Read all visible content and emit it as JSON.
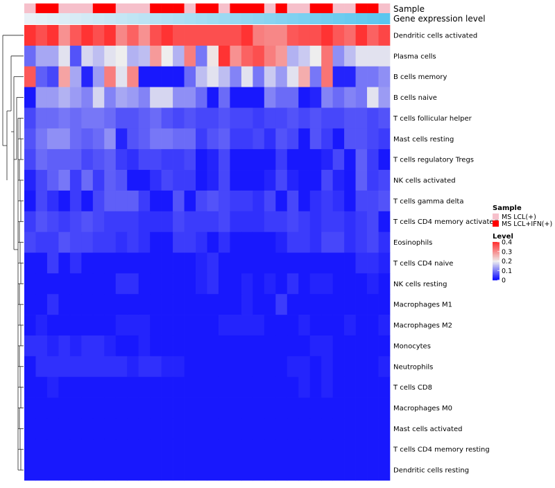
{
  "chart_data": {
    "type": "heatmap",
    "title": "",
    "annotation_tracks": [
      "Sample",
      "Gene expression level"
    ],
    "sample_annotation": [
      "LCL",
      "IFN",
      "IFN",
      "LCL",
      "LCL",
      "LCL",
      "IFN",
      "IFN",
      "LCL",
      "LCL",
      "LCL",
      "IFN",
      "IFN",
      "IFN",
      "LCL",
      "IFN",
      "IFN",
      "LCL",
      "IFN",
      "IFN",
      "IFN",
      "LCL",
      "IFN",
      "LCL",
      "LCL",
      "IFN",
      "IFN",
      "LCL",
      "LCL",
      "IFN",
      "IFN",
      "LCL"
    ],
    "expression_gradient": [
      "#eaf1f7",
      "#5bc6ee"
    ],
    "rows": [
      "Dendritic cells activated",
      "Plasma cells",
      "B cells memory",
      "B cells naive",
      "T cells follicular helper",
      "Mast cells resting",
      "T cells regulatory  Tregs",
      "NK cells activated",
      "T cells gamma delta",
      "T cells CD4 memory activated",
      "Eosinophils",
      "T cells CD4 naive",
      "NK cells resting",
      "Macrophages M1",
      "Macrophages M2",
      "Monocytes",
      "Neutrophils",
      "T cells CD8",
      "Macrophages M0",
      "Mast cells activated",
      "T cells CD4 memory resting",
      "Dendritic cells resting"
    ],
    "values": [
      [
        0.4,
        0.37,
        0.4,
        0.3,
        0.36,
        0.4,
        0.37,
        0.4,
        0.31,
        0.35,
        0.3,
        0.37,
        0.4,
        0.37,
        0.37,
        0.37,
        0.37,
        0.37,
        0.37,
        0.4,
        0.32,
        0.31,
        0.31,
        0.36,
        0.37,
        0.37,
        0.4,
        0.36,
        0.34,
        0.4,
        0.35,
        0.38
      ],
      [
        0.09,
        0.14,
        0.14,
        0.19,
        0.07,
        0.18,
        0.16,
        0.19,
        0.2,
        0.15,
        0.16,
        0.29,
        0.2,
        0.15,
        0.32,
        0.1,
        0.21,
        0.4,
        0.3,
        0.35,
        0.37,
        0.32,
        0.29,
        0.15,
        0.17,
        0.2,
        0.33,
        0.12,
        0.16,
        0.19,
        0.19,
        0.19
      ],
      [
        0.36,
        0.08,
        0.06,
        0.28,
        0.14,
        0.03,
        0.13,
        0.32,
        0.19,
        0.31,
        0.02,
        0.02,
        0.02,
        0.02,
        0.09,
        0.16,
        0.19,
        0.16,
        0.11,
        0.19,
        0.1,
        0.17,
        0.13,
        0.19,
        0.27,
        0.1,
        0.33,
        0.03,
        0.03,
        0.1,
        0.1,
        0.12
      ],
      [
        0.02,
        0.13,
        0.13,
        0.15,
        0.13,
        0.11,
        0.18,
        0.11,
        0.14,
        0.13,
        0.11,
        0.18,
        0.18,
        0.12,
        0.12,
        0.09,
        0.02,
        0.09,
        0.02,
        0.02,
        0.02,
        0.11,
        0.09,
        0.09,
        0.02,
        0.03,
        0.11,
        0.09,
        0.11,
        0.1,
        0.19,
        0.13
      ],
      [
        0.06,
        0.09,
        0.09,
        0.1,
        0.09,
        0.1,
        0.1,
        0.09,
        0.07,
        0.07,
        0.08,
        0.09,
        0.07,
        0.06,
        0.07,
        0.06,
        0.06,
        0.07,
        0.06,
        0.06,
        0.05,
        0.06,
        0.06,
        0.07,
        0.06,
        0.07,
        0.06,
        0.06,
        0.07,
        0.07,
        0.06,
        0.07
      ],
      [
        0.07,
        0.1,
        0.12,
        0.12,
        0.09,
        0.08,
        0.09,
        0.12,
        0.03,
        0.07,
        0.08,
        0.1,
        0.1,
        0.09,
        0.09,
        0.05,
        0.07,
        0.08,
        0.05,
        0.05,
        0.06,
        0.04,
        0.07,
        0.06,
        0.02,
        0.07,
        0.05,
        0.02,
        0.07,
        0.07,
        0.06,
        0.05
      ],
      [
        0.06,
        0.09,
        0.08,
        0.08,
        0.08,
        0.06,
        0.07,
        0.08,
        0.05,
        0.04,
        0.06,
        0.06,
        0.05,
        0.05,
        0.06,
        0.02,
        0.03,
        0.06,
        0.02,
        0.02,
        0.02,
        0.02,
        0.05,
        0.02,
        0.02,
        0.02,
        0.03,
        0.06,
        0.02,
        0.08,
        0.05,
        0.02
      ],
      [
        0.03,
        0.06,
        0.08,
        0.1,
        0.05,
        0.09,
        0.05,
        0.08,
        0.07,
        0.02,
        0.02,
        0.04,
        0.06,
        0.05,
        0.05,
        0.02,
        0.03,
        0.06,
        0.02,
        0.02,
        0.02,
        0.03,
        0.06,
        0.03,
        0.02,
        0.02,
        0.06,
        0.03,
        0.02,
        0.08,
        0.05,
        0.06
      ],
      [
        0.02,
        0.06,
        0.04,
        0.02,
        0.05,
        0.02,
        0.06,
        0.08,
        0.08,
        0.08,
        0.05,
        0.02,
        0.02,
        0.07,
        0.02,
        0.06,
        0.07,
        0.06,
        0.05,
        0.05,
        0.04,
        0.06,
        0.02,
        0.06,
        0.02,
        0.04,
        0.05,
        0.04,
        0.02,
        0.06,
        0.06,
        0.07
      ],
      [
        0.05,
        0.07,
        0.06,
        0.05,
        0.06,
        0.07,
        0.06,
        0.05,
        0.05,
        0.05,
        0.04,
        0.04,
        0.04,
        0.06,
        0.05,
        0.05,
        0.05,
        0.06,
        0.04,
        0.04,
        0.04,
        0.05,
        0.05,
        0.06,
        0.05,
        0.04,
        0.05,
        0.05,
        0.04,
        0.05,
        0.06,
        0.02
      ],
      [
        0.06,
        0.05,
        0.05,
        0.07,
        0.06,
        0.06,
        0.05,
        0.05,
        0.04,
        0.05,
        0.04,
        0.02,
        0.02,
        0.05,
        0.05,
        0.04,
        0.02,
        0.04,
        0.02,
        0.02,
        0.02,
        0.02,
        0.03,
        0.05,
        0.05,
        0.04,
        0.06,
        0.06,
        0.04,
        0.05,
        0.06,
        0.04
      ],
      [
        0.02,
        0.02,
        0.05,
        0.02,
        0.04,
        0.02,
        0.02,
        0.02,
        0.02,
        0.02,
        0.02,
        0.02,
        0.02,
        0.02,
        0.02,
        0.03,
        0.04,
        0.02,
        0.02,
        0.02,
        0.02,
        0.02,
        0.02,
        0.02,
        0.02,
        0.02,
        0.02,
        0.02,
        0.02,
        0.04,
        0.04,
        0.03
      ],
      [
        0.02,
        0.02,
        0.02,
        0.02,
        0.02,
        0.02,
        0.02,
        0.02,
        0.04,
        0.04,
        0.02,
        0.02,
        0.02,
        0.02,
        0.02,
        0.03,
        0.04,
        0.02,
        0.02,
        0.03,
        0.02,
        0.03,
        0.02,
        0.04,
        0.02,
        0.03,
        0.03,
        0.02,
        0.02,
        0.02,
        0.03,
        0.02
      ],
      [
        0.02,
        0.02,
        0.04,
        0.02,
        0.02,
        0.02,
        0.02,
        0.02,
        0.02,
        0.02,
        0.02,
        0.02,
        0.02,
        0.02,
        0.02,
        0.02,
        0.02,
        0.02,
        0.02,
        0.03,
        0.02,
        0.02,
        0.05,
        0.02,
        0.02,
        0.02,
        0.02,
        0.02,
        0.02,
        0.02,
        0.02,
        0.02
      ],
      [
        0.02,
        0.03,
        0.02,
        0.02,
        0.02,
        0.02,
        0.02,
        0.02,
        0.03,
        0.03,
        0.03,
        0.02,
        0.02,
        0.02,
        0.02,
        0.02,
        0.02,
        0.03,
        0.03,
        0.03,
        0.03,
        0.02,
        0.02,
        0.02,
        0.03,
        0.02,
        0.02,
        0.02,
        0.03,
        0.02,
        0.02,
        0.03
      ],
      [
        0.04,
        0.04,
        0.03,
        0.04,
        0.03,
        0.04,
        0.04,
        0.03,
        0.02,
        0.02,
        0.03,
        0.02,
        0.02,
        0.02,
        0.02,
        0.02,
        0.02,
        0.02,
        0.02,
        0.02,
        0.02,
        0.02,
        0.02,
        0.02,
        0.02,
        0.03,
        0.03,
        0.02,
        0.02,
        0.02,
        0.02,
        0.02
      ],
      [
        0.02,
        0.04,
        0.04,
        0.04,
        0.04,
        0.04,
        0.04,
        0.04,
        0.04,
        0.03,
        0.04,
        0.04,
        0.03,
        0.03,
        0.02,
        0.02,
        0.02,
        0.02,
        0.02,
        0.02,
        0.02,
        0.02,
        0.02,
        0.03,
        0.03,
        0.02,
        0.03,
        0.02,
        0.02,
        0.02,
        0.02,
        0.03
      ],
      [
        0.02,
        0.02,
        0.03,
        0.02,
        0.02,
        0.02,
        0.02,
        0.02,
        0.02,
        0.02,
        0.02,
        0.02,
        0.02,
        0.02,
        0.02,
        0.02,
        0.02,
        0.02,
        0.02,
        0.02,
        0.02,
        0.02,
        0.02,
        0.02,
        0.03,
        0.02,
        0.03,
        0.02,
        0.02,
        0.02,
        0.02,
        0.02
      ],
      [
        0.02,
        0.02,
        0.02,
        0.02,
        0.02,
        0.02,
        0.02,
        0.02,
        0.02,
        0.02,
        0.02,
        0.02,
        0.02,
        0.02,
        0.02,
        0.02,
        0.02,
        0.02,
        0.02,
        0.02,
        0.02,
        0.02,
        0.02,
        0.02,
        0.02,
        0.02,
        0.02,
        0.02,
        0.02,
        0.02,
        0.02,
        0.02
      ],
      [
        0.02,
        0.02,
        0.02,
        0.02,
        0.02,
        0.02,
        0.02,
        0.02,
        0.02,
        0.02,
        0.02,
        0.02,
        0.02,
        0.02,
        0.02,
        0.02,
        0.02,
        0.02,
        0.02,
        0.02,
        0.02,
        0.02,
        0.02,
        0.02,
        0.02,
        0.02,
        0.02,
        0.02,
        0.02,
        0.02,
        0.02,
        0.02
      ],
      [
        0.02,
        0.02,
        0.02,
        0.02,
        0.02,
        0.02,
        0.02,
        0.02,
        0.02,
        0.02,
        0.02,
        0.02,
        0.02,
        0.02,
        0.02,
        0.02,
        0.02,
        0.02,
        0.02,
        0.02,
        0.02,
        0.02,
        0.02,
        0.02,
        0.02,
        0.02,
        0.02,
        0.02,
        0.02,
        0.02,
        0.02,
        0.02
      ],
      [
        0.02,
        0.02,
        0.02,
        0.02,
        0.02,
        0.02,
        0.02,
        0.02,
        0.02,
        0.02,
        0.02,
        0.02,
        0.02,
        0.02,
        0.02,
        0.02,
        0.02,
        0.02,
        0.02,
        0.02,
        0.02,
        0.02,
        0.02,
        0.02,
        0.02,
        0.02,
        0.02,
        0.02,
        0.02,
        0.02,
        0.02,
        0.02
      ]
    ],
    "legend": {
      "sample": {
        "title": "Sample",
        "entries": [
          {
            "label": "MS LCL(+)",
            "color": "#f6c0cb"
          },
          {
            "label": "MS LCL+IFN(+)",
            "color": "#ff0000"
          }
        ]
      },
      "level": {
        "title": "Level",
        "range": [
          0,
          0.4
        ],
        "ticks": [
          "0.4",
          "0.3",
          "0.2",
          "0.1",
          "0"
        ],
        "tick_values": [
          0.4,
          0.3,
          0.2,
          0.1,
          0
        ],
        "colors": [
          "#0000ff",
          "#eeeeee",
          "#ff3333"
        ],
        "placement": "right"
      }
    }
  }
}
